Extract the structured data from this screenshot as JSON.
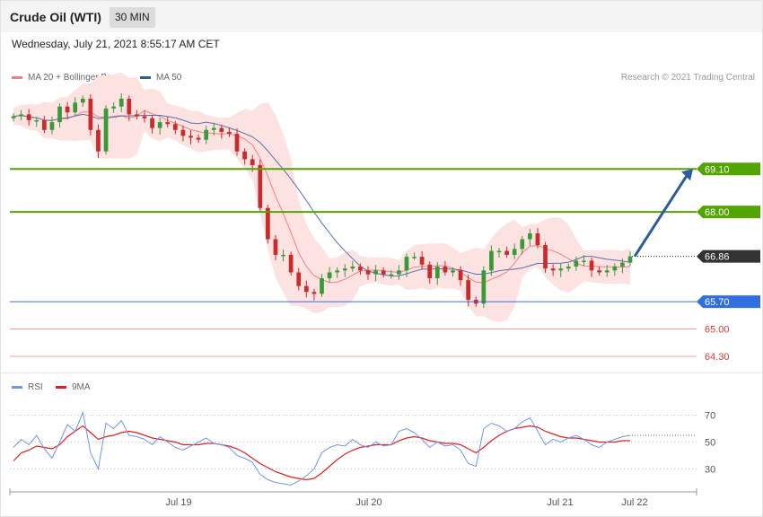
{
  "header": {
    "title": "Crude Oil (WTI)",
    "timeframe": "30 MIN",
    "datetime": "Wednesday, July 21, 2021 8:55:17 AM CET"
  },
  "legend": {
    "ma20_label": "MA 20 + Bollinger Bands",
    "ma50_label": "MA 50",
    "rsi_label": "RSI",
    "rsi_ma_label": "9MA"
  },
  "credit": "Research © 2021 Trading Central",
  "colors": {
    "bull": "#3a9a3a",
    "bear": "#cc2a2a",
    "ma20": "#f08080",
    "ma50": "#5a6fb0",
    "band": "#fde2e2",
    "resistance": "#52a400",
    "current": "#333333",
    "support": "#2f6fe0",
    "minor_support": "#f4a0a0",
    "arrow": "#2d5ba0",
    "rsi": "#6f96e8",
    "rsi_ma": "#e02020"
  },
  "chart_data": [
    {
      "type": "candlestick",
      "symbol": "Crude Oil (WTI)",
      "interval": "30 MIN",
      "ylim": [
        64.0,
        70.9
      ],
      "x_ticks": [
        "Jul 19",
        "Jul 20",
        "Jul 21",
        "Jul 22"
      ],
      "close_profile": [
        70.45,
        70.5,
        70.35,
        70.35,
        70.1,
        70.3,
        70.7,
        70.55,
        70.8,
        70.9,
        70.1,
        69.55,
        70.65,
        70.7,
        70.9,
        70.5,
        70.45,
        70.4,
        70.15,
        70.3,
        70.25,
        70.1,
        69.95,
        69.9,
        69.85,
        70.1,
        70.15,
        70.05,
        70.0,
        69.55,
        69.35,
        69.2,
        68.1,
        67.3,
        66.9,
        66.9,
        66.45,
        66.1,
        65.95,
        65.9,
        66.3,
        66.45,
        66.5,
        66.55,
        66.6,
        66.5,
        66.4,
        66.5,
        66.4,
        66.4,
        66.5,
        66.85,
        66.85,
        66.65,
        66.3,
        66.6,
        66.45,
        66.5,
        66.25,
        65.75,
        65.65,
        66.5,
        67.0,
        67.0,
        66.9,
        67.05,
        67.3,
        67.45,
        67.15,
        66.55,
        66.5,
        66.55,
        66.6,
        66.75,
        66.75,
        66.5,
        66.45,
        66.5,
        66.6,
        66.7,
        66.86
      ],
      "levels": [
        {
          "label": "69.10",
          "value": 69.1,
          "kind": "resistance"
        },
        {
          "label": "68.00",
          "value": 68.0,
          "kind": "resistance"
        },
        {
          "label": "66.86",
          "value": 66.86,
          "kind": "last_price"
        },
        {
          "label": "65.70",
          "value": 65.7,
          "kind": "pivot_support"
        },
        {
          "label": "65.00",
          "value": 65.0,
          "kind": "support"
        },
        {
          "label": "64.30",
          "value": 64.3,
          "kind": "support"
        }
      ],
      "target_arrow": {
        "from": 66.86,
        "to": 69.1
      },
      "indicators": [
        "MA 20 + Bollinger Bands",
        "MA 50"
      ]
    },
    {
      "type": "line",
      "indicator": "RSI",
      "y_ticks": [
        "70",
        "50",
        "30"
      ],
      "ylim": [
        15,
        85
      ],
      "series": [
        {
          "name": "RSI",
          "values": [
            46,
            52,
            48,
            55,
            45,
            38,
            50,
            63,
            58,
            72,
            42,
            30,
            64,
            60,
            66,
            55,
            54,
            52,
            48,
            54,
            50,
            46,
            44,
            47,
            50,
            53,
            49,
            48,
            46,
            40,
            38,
            35,
            26,
            22,
            20,
            19,
            18,
            21,
            25,
            30,
            42,
            46,
            48,
            47,
            52,
            48,
            46,
            50,
            47,
            48,
            58,
            60,
            57,
            52,
            46,
            50,
            47,
            48,
            44,
            34,
            32,
            60,
            64,
            62,
            58,
            60,
            65,
            68,
            58,
            48,
            52,
            50,
            53,
            55,
            52,
            48,
            46,
            50,
            52,
            54,
            55
          ]
        },
        {
          "name": "9MA",
          "values": [
            36,
            42,
            44,
            47,
            46,
            45,
            48,
            54,
            58,
            62,
            57,
            52,
            54,
            55,
            57,
            58,
            57,
            55,
            53,
            52,
            51,
            50,
            48,
            48,
            48,
            49,
            49,
            48,
            47,
            45,
            42,
            38,
            34,
            31,
            28,
            26,
            24,
            23,
            22,
            23,
            27,
            32,
            37,
            41,
            44,
            46,
            47,
            48,
            48,
            48,
            51,
            53,
            54,
            53,
            51,
            50,
            49,
            49,
            48,
            45,
            42,
            46,
            51,
            55,
            58,
            60,
            61,
            62,
            61,
            58,
            56,
            54,
            53,
            53,
            52,
            51,
            50,
            50,
            50,
            51,
            51
          ]
        }
      ]
    }
  ]
}
